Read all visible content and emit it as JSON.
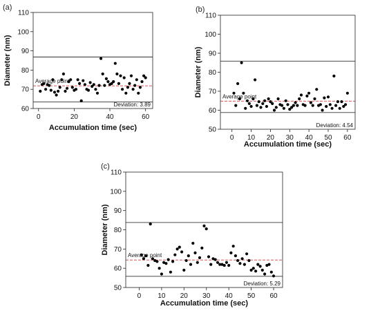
{
  "chart_data": [
    {
      "type": "scatter",
      "panel_label": "(a)",
      "xlabel": "Accumulation time (sec)",
      "ylabel": "Diameter (nm)",
      "xlim": [
        -3,
        64
      ],
      "ylim": [
        60,
        110
      ],
      "xticks": [
        0,
        20,
        40,
        60
      ],
      "yticks": [
        60,
        70,
        80,
        90,
        100,
        110
      ],
      "upper_limit": 86.8,
      "lower_limit": 63.4,
      "average": 71.8,
      "average_label": "Average point",
      "deviation_label": "Deviation: 3.89",
      "x": [
        1,
        2,
        3,
        4,
        5,
        6,
        7,
        8,
        9,
        10,
        11,
        12,
        13,
        14,
        15,
        16,
        17,
        18,
        19,
        20,
        21,
        22,
        23,
        24,
        25,
        26,
        27,
        28,
        29,
        30,
        31,
        32,
        33,
        34,
        35,
        36,
        37,
        38,
        39,
        40,
        41,
        42,
        43,
        44,
        45,
        46,
        47,
        48,
        49,
        50,
        51,
        52,
        53,
        54,
        55,
        56,
        57,
        58,
        59,
        60
      ],
      "y": [
        69,
        72.5,
        73,
        70,
        72.5,
        72,
        69.5,
        75,
        68.5,
        67,
        69,
        71,
        75,
        78,
        69,
        70.5,
        74,
        75,
        71,
        69.5,
        70,
        75,
        73,
        64,
        74.5,
        72.5,
        70,
        69.5,
        73.5,
        71.5,
        72.5,
        70,
        68,
        72,
        86,
        78,
        72,
        75.5,
        74,
        72.5,
        73,
        74,
        83.5,
        78,
        73,
        77,
        70,
        76,
        68,
        71,
        73,
        77,
        70,
        72,
        75,
        68,
        71,
        74,
        77,
        76
      ]
    },
    {
      "type": "scatter",
      "panel_label": "(b)",
      "xlabel": "Accumulation time (sec)",
      "ylabel": "Diameter (nm)",
      "xlim": [
        -6,
        64
      ],
      "ylim": [
        50,
        110
      ],
      "xticks": [
        0,
        10,
        20,
        30,
        40,
        50,
        60
      ],
      "yticks": [
        50,
        60,
        70,
        80,
        90,
        100,
        110
      ],
      "upper_limit": 85.8,
      "lower_limit": 58.8,
      "average": 64.8,
      "average_label": "Average point",
      "deviation_label": "Deviation: 4.54",
      "x": [
        1,
        2,
        3,
        4,
        5,
        6,
        7,
        8,
        9,
        10,
        11,
        12,
        13,
        14,
        15,
        16,
        17,
        18,
        19,
        20,
        21,
        22,
        23,
        24,
        25,
        26,
        27,
        28,
        29,
        30,
        31,
        32,
        33,
        34,
        35,
        36,
        37,
        38,
        39,
        40,
        41,
        42,
        43,
        44,
        45,
        46,
        47,
        48,
        49,
        50,
        51,
        52,
        53,
        54,
        55,
        56,
        57,
        58,
        59,
        60
      ],
      "y": [
        69,
        62.5,
        74,
        66,
        85,
        69,
        61,
        65,
        63.5,
        62,
        66,
        76,
        62.5,
        64.5,
        61.5,
        63.5,
        65,
        62,
        66,
        64.5,
        63.5,
        60,
        61.5,
        66,
        63,
        62.5,
        61,
        65,
        63,
        60.5,
        61.5,
        62.5,
        64,
        62.5,
        66,
        68,
        63,
        62.5,
        67.5,
        69,
        64,
        62.5,
        66,
        71,
        62.5,
        63,
        60,
        66.5,
        62,
        67,
        63,
        61,
        78,
        62.5,
        64.5,
        61,
        64.5,
        62,
        63,
        69
      ]
    },
    {
      "type": "scatter",
      "panel_label": "(c)",
      "xlabel": "Accumulation time (sec)",
      "ylabel": "Diameter (nm)",
      "xlim": [
        -6,
        64
      ],
      "ylim": [
        50,
        110
      ],
      "xticks": [
        0,
        10,
        20,
        30,
        40,
        50,
        60
      ],
      "yticks": [
        50,
        60,
        70,
        80,
        90,
        100,
        110
      ],
      "upper_limit": 83.8,
      "lower_limit": 55.8,
      "average": 64.3,
      "average_label": "Average point",
      "deviation_label": "Deviation: 5.29",
      "x": [
        1,
        2,
        3,
        4,
        5,
        6,
        7,
        8,
        9,
        10,
        11,
        12,
        13,
        14,
        15,
        16,
        17,
        18,
        19,
        20,
        21,
        22,
        23,
        24,
        25,
        26,
        27,
        28,
        29,
        30,
        31,
        32,
        33,
        34,
        35,
        36,
        37,
        38,
        39,
        40,
        41,
        42,
        43,
        44,
        45,
        46,
        47,
        48,
        49,
        50,
        51,
        52,
        53,
        54,
        55,
        56,
        57,
        58,
        59,
        60
      ],
      "y": [
        67,
        65,
        66.5,
        61.5,
        83,
        65,
        64,
        63.5,
        60,
        57,
        63,
        62.5,
        64.5,
        58,
        63.5,
        67,
        70,
        71,
        68.5,
        59,
        64,
        66.5,
        62,
        73,
        68,
        63,
        65.5,
        70.5,
        82,
        80.5,
        66,
        62,
        65,
        64.5,
        63,
        62,
        62,
        61.5,
        63,
        61.5,
        68,
        71.5,
        66.5,
        64,
        62.5,
        65,
        62,
        67.5,
        64,
        59,
        60,
        58.5,
        62,
        61,
        59,
        57,
        61.5,
        62,
        58,
        56
      ]
    }
  ]
}
